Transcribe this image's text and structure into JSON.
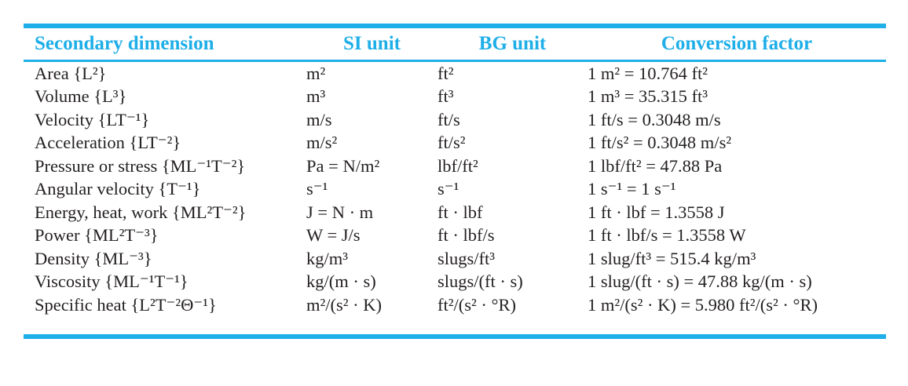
{
  "table": {
    "headers": [
      "Secondary dimension",
      "SI unit",
      "BG unit",
      "Conversion factor"
    ],
    "rows": [
      {
        "dimension": "Area {L²}",
        "si": "m²",
        "bg": "ft²",
        "conversion": "1 m² = 10.764 ft²"
      },
      {
        "dimension": "Volume {L³}",
        "si": "m³",
        "bg": "ft³",
        "conversion": "1 m³ = 35.315 ft³"
      },
      {
        "dimension": "Velocity {LT⁻¹}",
        "si": "m/s",
        "bg": "ft/s",
        "conversion": "1 ft/s = 0.3048 m/s"
      },
      {
        "dimension": "Acceleration {LT⁻²}",
        "si": "m/s²",
        "bg": "ft/s²",
        "conversion": "1 ft/s² = 0.3048 m/s²"
      },
      {
        "dimension": "Pressure or stress {ML⁻¹T⁻²}",
        "si": "Pa = N/m²",
        "bg": "lbf/ft²",
        "conversion": "1 lbf/ft² = 47.88 Pa"
      },
      {
        "dimension": "Angular velocity {T⁻¹}",
        "si": "s⁻¹",
        "bg": "s⁻¹",
        "conversion": "1 s⁻¹ = 1 s⁻¹"
      },
      {
        "dimension": "Energy, heat, work {ML²T⁻²}",
        "si": "J = N · m",
        "bg": "ft · lbf",
        "conversion": "1 ft · lbf = 1.3558 J"
      },
      {
        "dimension": "Power {ML²T⁻³}",
        "si": "W = J/s",
        "bg": "ft · lbf/s",
        "conversion": "1 ft · lbf/s = 1.3558 W"
      },
      {
        "dimension": "Density {ML⁻³}",
        "si": "kg/m³",
        "bg": "slugs/ft³",
        "conversion": "1 slug/ft³ = 515.4 kg/m³"
      },
      {
        "dimension": "Viscosity {ML⁻¹T⁻¹}",
        "si": "kg/(m · s)",
        "bg": "slugs/(ft · s)",
        "conversion": "1 slug/(ft · s) = 47.88 kg/(m · s)"
      },
      {
        "dimension": "Specific heat {L²T⁻²Θ⁻¹}",
        "si": "m²/(s² · K)",
        "bg": "ft²/(s² · °R)",
        "conversion": "1 m²/(s² · K) = 5.980 ft²/(s² · °R)"
      }
    ]
  },
  "colors": {
    "accent": "#1eaee8",
    "text": "#231f20"
  }
}
